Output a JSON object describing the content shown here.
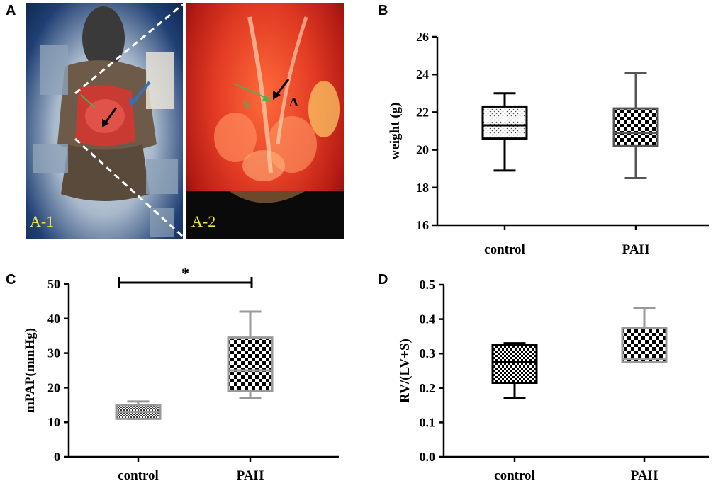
{
  "panels": {
    "A": "A",
    "B": "B",
    "C": "C",
    "D": "D"
  },
  "photos": {
    "left_label": "A-1",
    "right_label": "A-2",
    "right_letter_v": "V",
    "right_letter_a": "A"
  },
  "colors": {
    "label_yellow": "#f2e23a",
    "box_black": "#000000",
    "box_gray": "#808080",
    "arrow_blue": "#3a6fb5",
    "arrow_green": "#4caf50"
  },
  "chart_data": [
    {
      "id": "B",
      "type": "box",
      "ylabel": "weight (g)",
      "ylim": [
        16,
        26
      ],
      "yticks": [
        16,
        18,
        20,
        22,
        24,
        26
      ],
      "ytick_labels": [
        "16",
        "18",
        "20",
        "22",
        "24",
        "26"
      ],
      "categories": [
        "control",
        "PAH"
      ],
      "boxes": [
        {
          "min": 18.9,
          "q1": 20.6,
          "median": 21.3,
          "q3": 22.3,
          "max": 23.0,
          "pattern": "dots",
          "stroke": "#000000"
        },
        {
          "min": 18.5,
          "q1": 20.2,
          "median": 20.9,
          "q3": 22.2,
          "max": 24.1,
          "pattern": "checker",
          "stroke": "#555555"
        }
      ]
    },
    {
      "id": "C",
      "type": "box",
      "ylabel": "mPAP(mmHg)",
      "ylim": [
        0,
        50
      ],
      "yticks": [
        0,
        10,
        20,
        30,
        40,
        50
      ],
      "ytick_labels": [
        "0",
        "10",
        "20",
        "30",
        "40",
        "50"
      ],
      "categories": [
        "control",
        "PAH"
      ],
      "boxes": [
        {
          "min": 11,
          "q1": 11,
          "median": 13,
          "q3": 15,
          "max": 16,
          "pattern": "hatch",
          "stroke": "#999999"
        },
        {
          "min": 17,
          "q1": 19,
          "median": 25,
          "q3": 34.5,
          "max": 42,
          "pattern": "checker",
          "stroke": "#999999"
        }
      ],
      "significance": {
        "label": "*",
        "between": [
          0,
          1
        ],
        "y": 50
      }
    },
    {
      "id": "D",
      "type": "box",
      "ylabel": "RV/(LV+S)",
      "ylim": [
        0,
        0.5
      ],
      "yticks": [
        0,
        0.1,
        0.2,
        0.3,
        0.4,
        0.5
      ],
      "ytick_labels": [
        "0.0",
        "0.1",
        "0.2",
        "0.3",
        "0.4",
        "0.5"
      ],
      "categories": [
        "control",
        "PAH"
      ],
      "boxes": [
        {
          "min": 0.17,
          "q1": 0.215,
          "median": 0.275,
          "q3": 0.325,
          "max": 0.33,
          "pattern": "checker-small",
          "stroke": "#000000"
        },
        {
          "min": 0.275,
          "q1": 0.275,
          "median": 0.285,
          "q3": 0.375,
          "max": 0.433,
          "pattern": "checker",
          "stroke": "#999999"
        }
      ]
    }
  ]
}
